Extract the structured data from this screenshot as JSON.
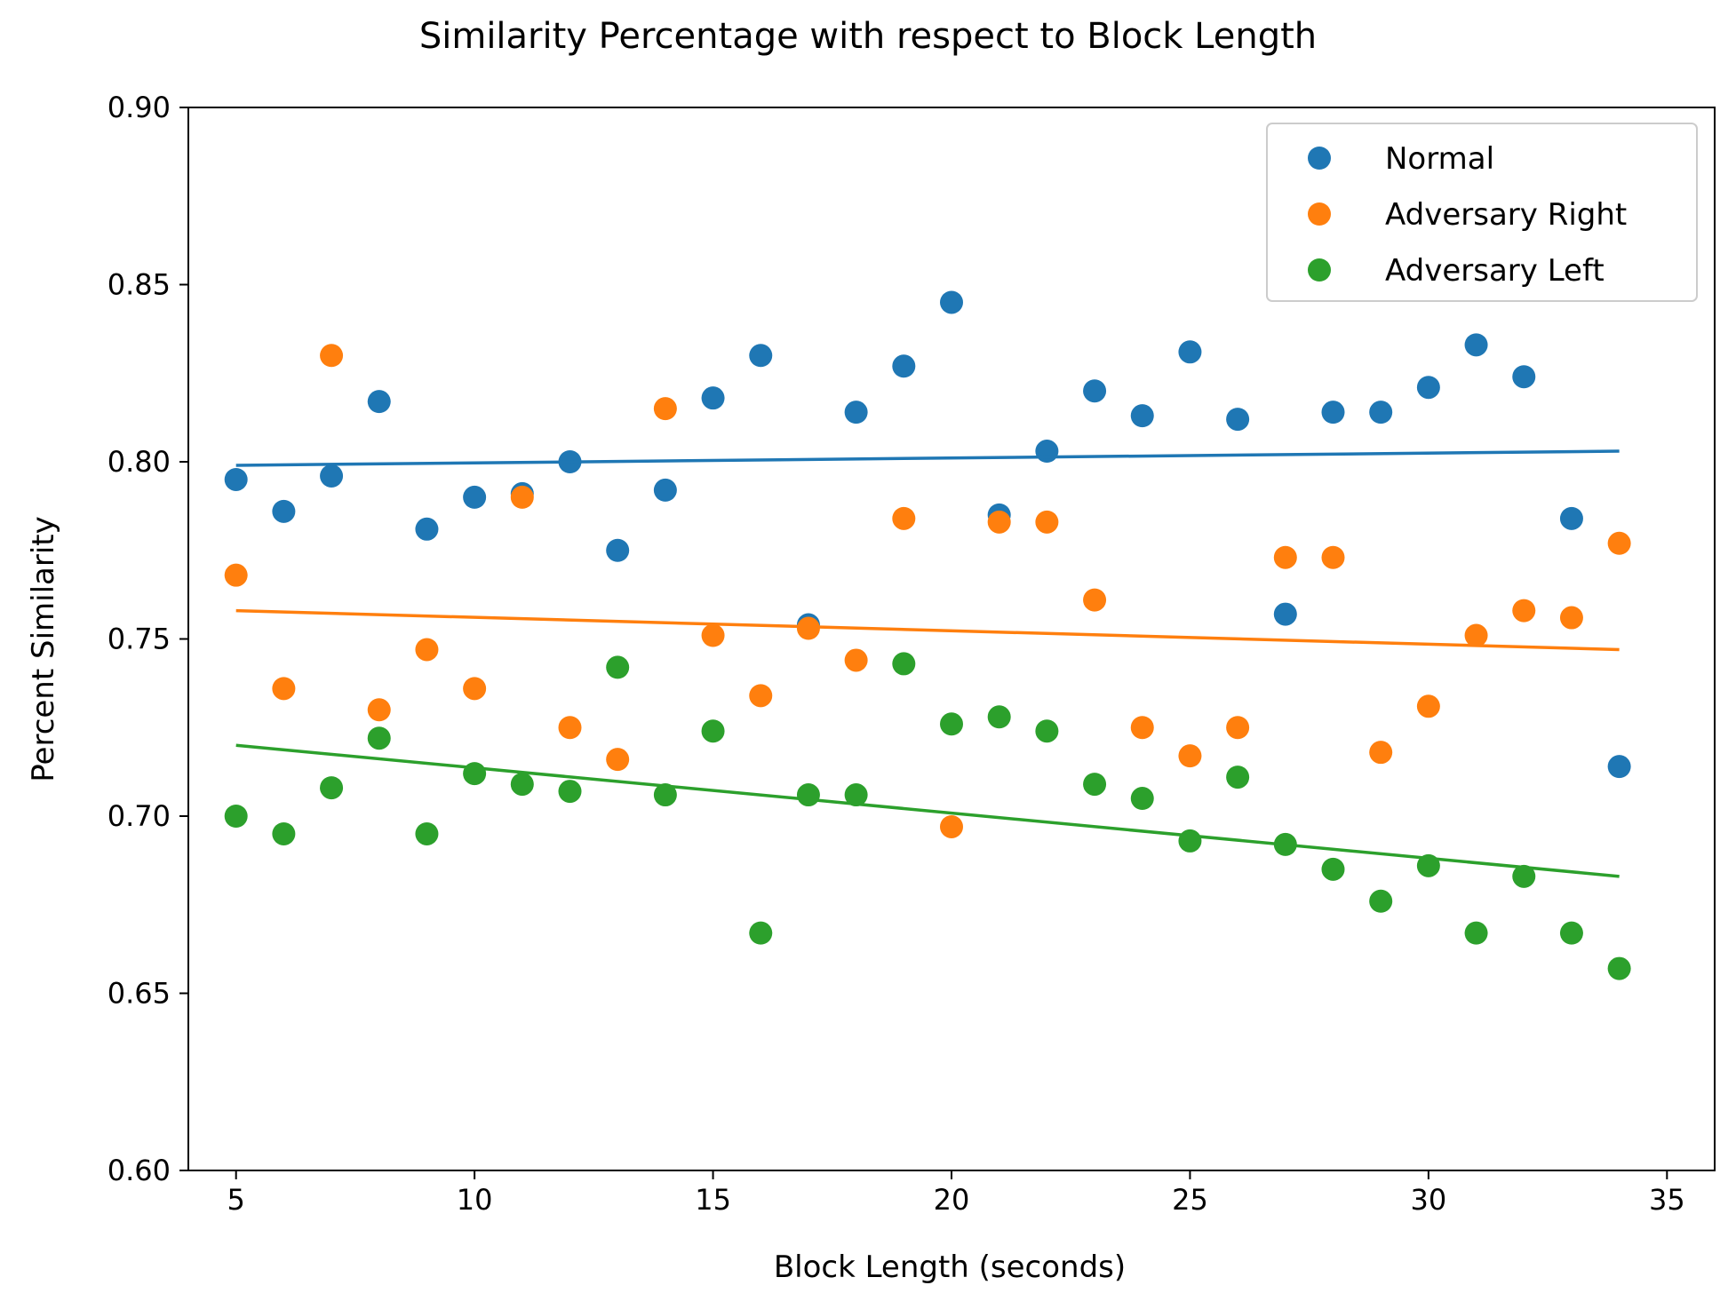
{
  "chart_data": {
    "type": "scatter",
    "title": "Similarity Percentage with respect to Block Length",
    "xlabel": "Block Length (seconds)",
    "ylabel": "Percent Similarity",
    "xlim": [
      4,
      36
    ],
    "ylim": [
      0.6,
      0.9
    ],
    "xticks": [
      5,
      10,
      15,
      20,
      25,
      30,
      35
    ],
    "yticks": [
      0.6,
      0.65,
      0.7,
      0.75,
      0.8,
      0.85,
      0.9
    ],
    "xtick_labels": [
      "5",
      "10",
      "15",
      "20",
      "25",
      "30",
      "35"
    ],
    "ytick_labels": [
      "0.60",
      "0.65",
      "0.70",
      "0.75",
      "0.80",
      "0.85",
      "0.90"
    ],
    "grid": false,
    "legend_position": "top-right",
    "x": [
      5,
      6,
      7,
      8,
      9,
      10,
      11,
      12,
      13,
      14,
      15,
      16,
      17,
      18,
      19,
      20,
      21,
      22,
      23,
      24,
      25,
      26,
      27,
      28,
      29,
      30,
      31,
      32,
      33,
      34
    ],
    "series": [
      {
        "name": "Normal",
        "color": "#1f77b4",
        "values": [
          0.795,
          0.786,
          0.796,
          0.817,
          0.781,
          0.79,
          0.791,
          0.8,
          0.775,
          0.792,
          0.818,
          0.83,
          0.754,
          0.814,
          0.827,
          0.845,
          0.785,
          0.803,
          0.82,
          0.813,
          0.831,
          0.812,
          0.757,
          0.814,
          0.814,
          0.821,
          0.833,
          0.824,
          0.784,
          0.714
        ],
        "trend": [
          0.799,
          0.803
        ]
      },
      {
        "name": "Adversary Right",
        "color": "#ff7f0e",
        "values": [
          0.768,
          0.736,
          0.83,
          0.73,
          0.747,
          0.736,
          0.79,
          0.725,
          0.716,
          0.815,
          0.751,
          0.734,
          0.753,
          0.744,
          0.784,
          0.697,
          0.783,
          0.783,
          0.761,
          0.725,
          0.717,
          0.725,
          0.773,
          0.773,
          0.718,
          0.731,
          0.751,
          0.758,
          0.756,
          0.777
        ],
        "trend": [
          0.758,
          0.747
        ]
      },
      {
        "name": "Adversary Left",
        "color": "#2ca02c",
        "values": [
          0.7,
          0.695,
          0.708,
          0.722,
          0.695,
          0.712,
          0.709,
          0.707,
          0.742,
          0.706,
          0.724,
          0.667,
          0.706,
          0.706,
          0.743,
          0.726,
          0.728,
          0.724,
          0.709,
          0.705,
          0.693,
          0.711,
          0.692,
          0.685,
          0.676,
          0.686,
          0.667,
          0.683,
          0.667,
          0.657
        ],
        "trend": [
          0.72,
          0.683
        ]
      }
    ]
  }
}
